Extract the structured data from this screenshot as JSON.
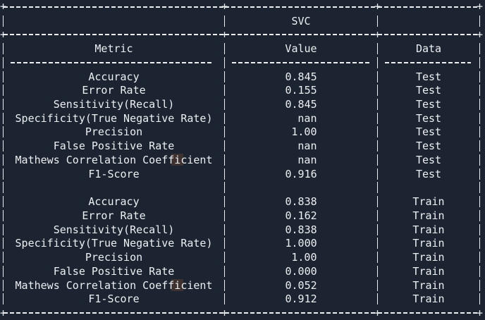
{
  "theme": {
    "background": "#1b2430",
    "foreground": "#edf0f3",
    "highlight": "rgba(200,110,50,0.20)"
  },
  "glyphs": {
    "corner": "+"
  },
  "table": {
    "model": "SVC",
    "headers": {
      "metric": "Metric",
      "value": "Value",
      "data": "Data"
    },
    "rows": [
      {
        "metric": "Accuracy",
        "value": "0.845",
        "data": "Test"
      },
      {
        "metric": "Error Rate",
        "value": "0.155",
        "data": "Test"
      },
      {
        "metric": "Sensitivity(Recall)",
        "value": "0.845",
        "data": "Test"
      },
      {
        "metric": "Specificity(True Negative Rate)",
        "value": "nan",
        "data": "Test"
      },
      {
        "metric": "Precision",
        "value": "1.00",
        "data": "Test"
      },
      {
        "metric": "False Positive Rate",
        "value": "nan",
        "data": "Test"
      },
      {
        "metric": "Mathews Correlation Coefficient",
        "value": "nan",
        "data": "Test"
      },
      {
        "metric": "F1-Score",
        "value": "0.916",
        "data": "Test"
      },
      {
        "metric": "Accuracy",
        "value": "0.838",
        "data": "Train"
      },
      {
        "metric": "Error Rate",
        "value": "0.162",
        "data": "Train"
      },
      {
        "metric": "Sensitivity(Recall)",
        "value": "0.838",
        "data": "Train"
      },
      {
        "metric": "Specificity(True Negative Rate)",
        "value": "1.000",
        "data": "Train"
      },
      {
        "metric": "Precision",
        "value": "1.00",
        "data": "Train"
      },
      {
        "metric": "False Positive Rate",
        "value": "0.000",
        "data": "Train"
      },
      {
        "metric": "Mathews Correlation Coefficient",
        "value": "0.052",
        "data": "Train"
      },
      {
        "metric": "F1-Score",
        "value": "0.912",
        "data": "Train"
      }
    ]
  }
}
